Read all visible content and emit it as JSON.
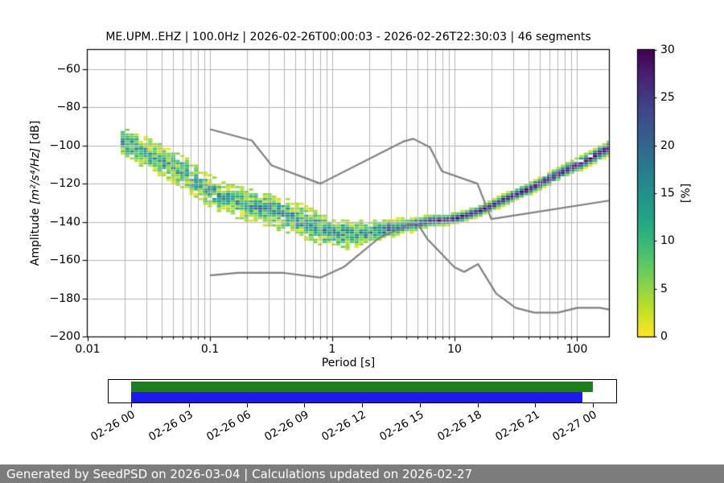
{
  "title": "ME.UPM..EHZ | 100.0Hz | 2026-02-26T00:00:03 - 2026-02-26T22:30:03 | 46 segments",
  "axis": {
    "xlabel": "Period [s]",
    "ylabel_prefix": "Amplitude ",
    "ylabel_math": "[m²/s⁴/Hz]",
    "ylabel_suffix": " [dB]"
  },
  "chart_data": {
    "type": "heatmap",
    "title": "ME.UPM..EHZ | 100.0Hz | 2026-02-26T00:00:03 - 2026-02-26T22:30:03 | 46 segments",
    "xlabel": "Period [s]",
    "ylabel": "Amplitude [m²/s⁴/Hz] [dB]",
    "xscale": "log",
    "xlim": [
      0.01,
      183
    ],
    "ylim": [
      -200,
      -50
    ],
    "grid": true,
    "x_tick_values": [
      0.01,
      0.1,
      1,
      10,
      100
    ],
    "x_tick_labels": [
      "0.01",
      "0.1",
      "1",
      "10",
      "100"
    ],
    "y_tick_values": [
      -60,
      -80,
      -100,
      -120,
      -140,
      -160,
      -180,
      -200
    ],
    "y_tick_labels": [
      "−60",
      "−80",
      "−100",
      "−120",
      "−140",
      "−160",
      "−180",
      "−200"
    ],
    "colorbar": {
      "label": "[%]",
      "tick_values": [
        0,
        5,
        10,
        15,
        20,
        25,
        30
      ],
      "tick_labels": [
        "0",
        "5",
        "10",
        "15",
        "20",
        "25",
        "30"
      ],
      "vmin": 0,
      "vmax": 30,
      "colormap": "viridis_r",
      "viridis_stops": [
        [
          0,
          "#440154"
        ],
        [
          0.1,
          "#482475"
        ],
        [
          0.2,
          "#414487"
        ],
        [
          0.3,
          "#355f8d"
        ],
        [
          0.4,
          "#2a788e"
        ],
        [
          0.5,
          "#21918c"
        ],
        [
          0.6,
          "#22a884"
        ],
        [
          0.7,
          "#44bf70"
        ],
        [
          0.8,
          "#7ad151"
        ],
        [
          0.9,
          "#bddf26"
        ],
        [
          1,
          "#fde725"
        ]
      ]
    },
    "ppsd": {
      "period_range": [
        0.0186,
        183
      ],
      "period_bin_decades": 0.0375,
      "db_bin": 1.25,
      "mode_bp": [
        [
          0.019,
          -97
        ],
        [
          0.028,
          -103
        ],
        [
          0.04,
          -107.5
        ],
        [
          0.06,
          -114
        ],
        [
          0.08,
          -119.5
        ],
        [
          0.1,
          -124
        ],
        [
          0.14,
          -128
        ],
        [
          0.2,
          -131
        ],
        [
          0.3,
          -133.5
        ],
        [
          0.45,
          -137
        ],
        [
          0.65,
          -141.5
        ],
        [
          0.9,
          -144.5
        ],
        [
          1.3,
          -146.5
        ],
        [
          2,
          -145.5
        ],
        [
          3,
          -143.5
        ],
        [
          4.5,
          -141.5
        ],
        [
          6.5,
          -139.5
        ],
        [
          9,
          -138.8
        ],
        [
          12,
          -137
        ],
        [
          16,
          -134.5
        ],
        [
          22,
          -130.5
        ],
        [
          30,
          -126.5
        ],
        [
          42,
          -122.5
        ],
        [
          60,
          -117.5
        ],
        [
          85,
          -112.5
        ],
        [
          120,
          -108
        ],
        [
          160,
          -103.5
        ],
        [
          183,
          -101.5
        ]
      ],
      "halfwidth_bp": [
        [
          0.019,
          6
        ],
        [
          0.05,
          7
        ],
        [
          0.1,
          6.5
        ],
        [
          0.3,
          7.2
        ],
        [
          0.65,
          7
        ],
        [
          1.3,
          6.2
        ],
        [
          2,
          5
        ],
        [
          3,
          4
        ],
        [
          4.5,
          3.2
        ],
        [
          6.5,
          2.6
        ],
        [
          9,
          2.4
        ],
        [
          16,
          2.4
        ],
        [
          30,
          2.6
        ],
        [
          60,
          2.8
        ],
        [
          100,
          3
        ],
        [
          183,
          3.4
        ]
      ],
      "peak_percent_bp": [
        [
          0.019,
          12
        ],
        [
          0.65,
          13
        ],
        [
          2,
          15
        ],
        [
          3,
          18
        ],
        [
          4.5,
          22
        ],
        [
          6.5,
          26
        ],
        [
          9,
          28
        ],
        [
          16,
          29
        ],
        [
          183,
          29
        ]
      ],
      "jitter_percent_bp": [
        [
          0.019,
          8
        ],
        [
          1.3,
          8
        ],
        [
          3,
          7
        ],
        [
          5,
          5
        ],
        [
          8,
          3
        ],
        [
          183,
          3
        ]
      ]
    },
    "noise_models": {
      "color": "#7f7f7f",
      "nhnm": [
        [
          0.1,
          -91.5
        ],
        [
          0.22,
          -97.4
        ],
        [
          0.32,
          -110.5
        ],
        [
          0.8,
          -120
        ],
        [
          3.8,
          -98
        ],
        [
          4.6,
          -96.5
        ],
        [
          6.3,
          -101
        ],
        [
          7.9,
          -113.5
        ],
        [
          15.4,
          -120
        ],
        [
          20,
          -138.5
        ],
        [
          183,
          -128.9
        ]
      ],
      "nlnm": [
        [
          0.1,
          -168
        ],
        [
          0.17,
          -166.7
        ],
        [
          0.4,
          -166.7
        ],
        [
          0.8,
          -169.2
        ],
        [
          1.24,
          -163.7
        ],
        [
          2.4,
          -148.6
        ],
        [
          4.3,
          -141.1
        ],
        [
          5,
          -141.1
        ],
        [
          6,
          -149
        ],
        [
          10,
          -163.8
        ],
        [
          12,
          -166.2
        ],
        [
          15.6,
          -162.1
        ],
        [
          21.9,
          -177.5
        ],
        [
          31.6,
          -185
        ],
        [
          45,
          -187.5
        ],
        [
          70,
          -187.5
        ],
        [
          101,
          -185
        ],
        [
          154,
          -185
        ],
        [
          183,
          -185.8
        ]
      ]
    }
  },
  "timeline": {
    "tick_labels": [
      "02-26 00",
      "02-26 03",
      "02-26 06",
      "02-26 09",
      "02-26 12",
      "02-26 15",
      "02-26 18",
      "02-26 21",
      "02-27 00"
    ],
    "bars": [
      {
        "name": "data-extent-bar",
        "color": "#1e7d1e",
        "start_frac": 0,
        "end_frac": 1
      },
      {
        "name": "psd-coverage-bar",
        "color": "#1a1aee",
        "start_frac": 0,
        "end_frac": 0.977
      }
    ]
  },
  "footer": {
    "text": "Generated by SeedPSD on 2026-03-04 | Calculations updated on 2026-02-27",
    "bg_color": "#7c7c7c",
    "text_color": "#ffffff"
  }
}
